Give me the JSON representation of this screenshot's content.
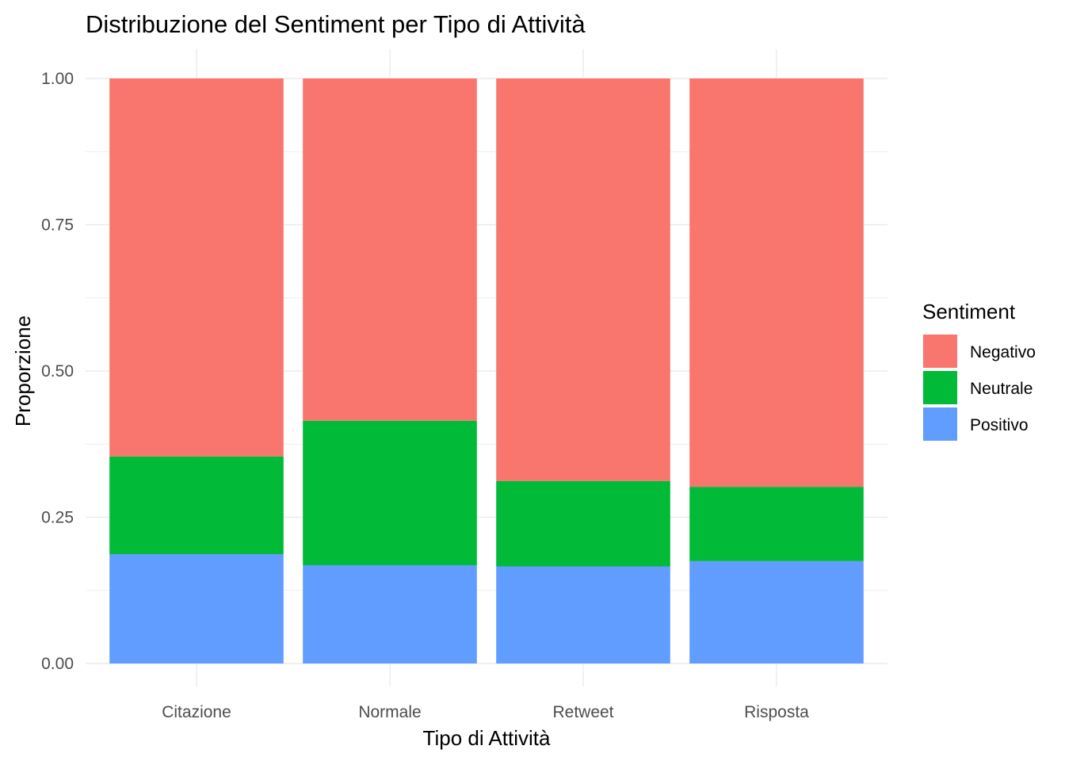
{
  "chart_data": {
    "type": "bar",
    "stacked": true,
    "title": "Distribuzione del Sentiment per Tipo di Attività",
    "xlabel": "Tipo di Attività",
    "ylabel": "Proporzione",
    "categories": [
      "Citazione",
      "Normale",
      "Retweet",
      "Risposta"
    ],
    "ylim": [
      0,
      1
    ],
    "yticks": [
      "0.00",
      "0.25",
      "0.50",
      "0.75",
      "1.00"
    ],
    "ytick_values": [
      0,
      0.25,
      0.5,
      0.75,
      1.0
    ],
    "grid": true,
    "legend_title": "Sentiment",
    "legend_position": "right",
    "series": [
      {
        "name": "Positivo",
        "color": "#619CFF",
        "values": [
          0.187,
          0.168,
          0.166,
          0.175
        ]
      },
      {
        "name": "Neutrale",
        "color": "#00BA38",
        "values": [
          0.167,
          0.247,
          0.146,
          0.127
        ]
      },
      {
        "name": "Negativo",
        "color": "#F8766D",
        "values": [
          0.646,
          0.585,
          0.688,
          0.698
        ]
      }
    ]
  }
}
